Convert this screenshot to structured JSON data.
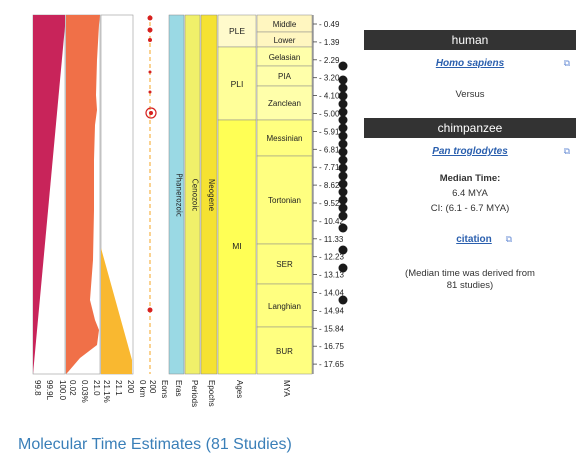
{
  "geo": {
    "eons": [
      "Phanerozoic"
    ],
    "eras": [
      "Cenozoic"
    ],
    "periods": [
      "Neogene"
    ],
    "epochs": [
      "PLE",
      "PLI",
      "MI"
    ],
    "ages": [
      "Middle",
      "Lower",
      "Gelasian",
      "PIA",
      "Zanclean",
      "Messinian",
      "Tortonian",
      "SER",
      "Langhian",
      "BUR"
    ],
    "mya_ticks": [
      "0.49",
      "1.39",
      "2.29",
      "3.20",
      "4.10",
      "5.00",
      "5.91",
      "6.81",
      "7.71",
      "8.62",
      "9.52",
      "10.42",
      "11.33",
      "12.23",
      "13.13",
      "14.04",
      "14.94",
      "15.84",
      "16.75",
      "17.65"
    ]
  },
  "columns": {
    "bottom_labels": [
      "99.8",
      "99.9L",
      "100.0",
      "0.02",
      "0.03%",
      "21.0",
      "21.1%",
      "21.1",
      "200",
      "0 km",
      "200",
      "Eons",
      "Eras",
      "Periods",
      "Epochs",
      "Ages",
      "MYA"
    ]
  },
  "colors": {
    "magenta": "#c8245a",
    "salmon": "#f07048",
    "orange_yellow": "#f9b830",
    "eon": "#9ad9e4",
    "era": "#f0f06a",
    "period": "#f5e232",
    "epoch_yellow": "#ffff55",
    "age_yellow": "#ffff80"
  },
  "panel": {
    "taxon1": "human",
    "taxon1_sci": "Homo sapiens",
    "versus": "Versus",
    "taxon2": "chimpanzee",
    "taxon2_sci": "Pan troglodytes",
    "median_label": "Median Time:",
    "median_value": "6.4 MYA",
    "ci": "CI: (6.1 - 6.7 MYA)",
    "citation": "citation",
    "note_line1": "(Median time was derived from",
    "note_line2": "81 studies)"
  },
  "footer": {
    "title": "Molecular Time Estimates (81 Studies)"
  }
}
